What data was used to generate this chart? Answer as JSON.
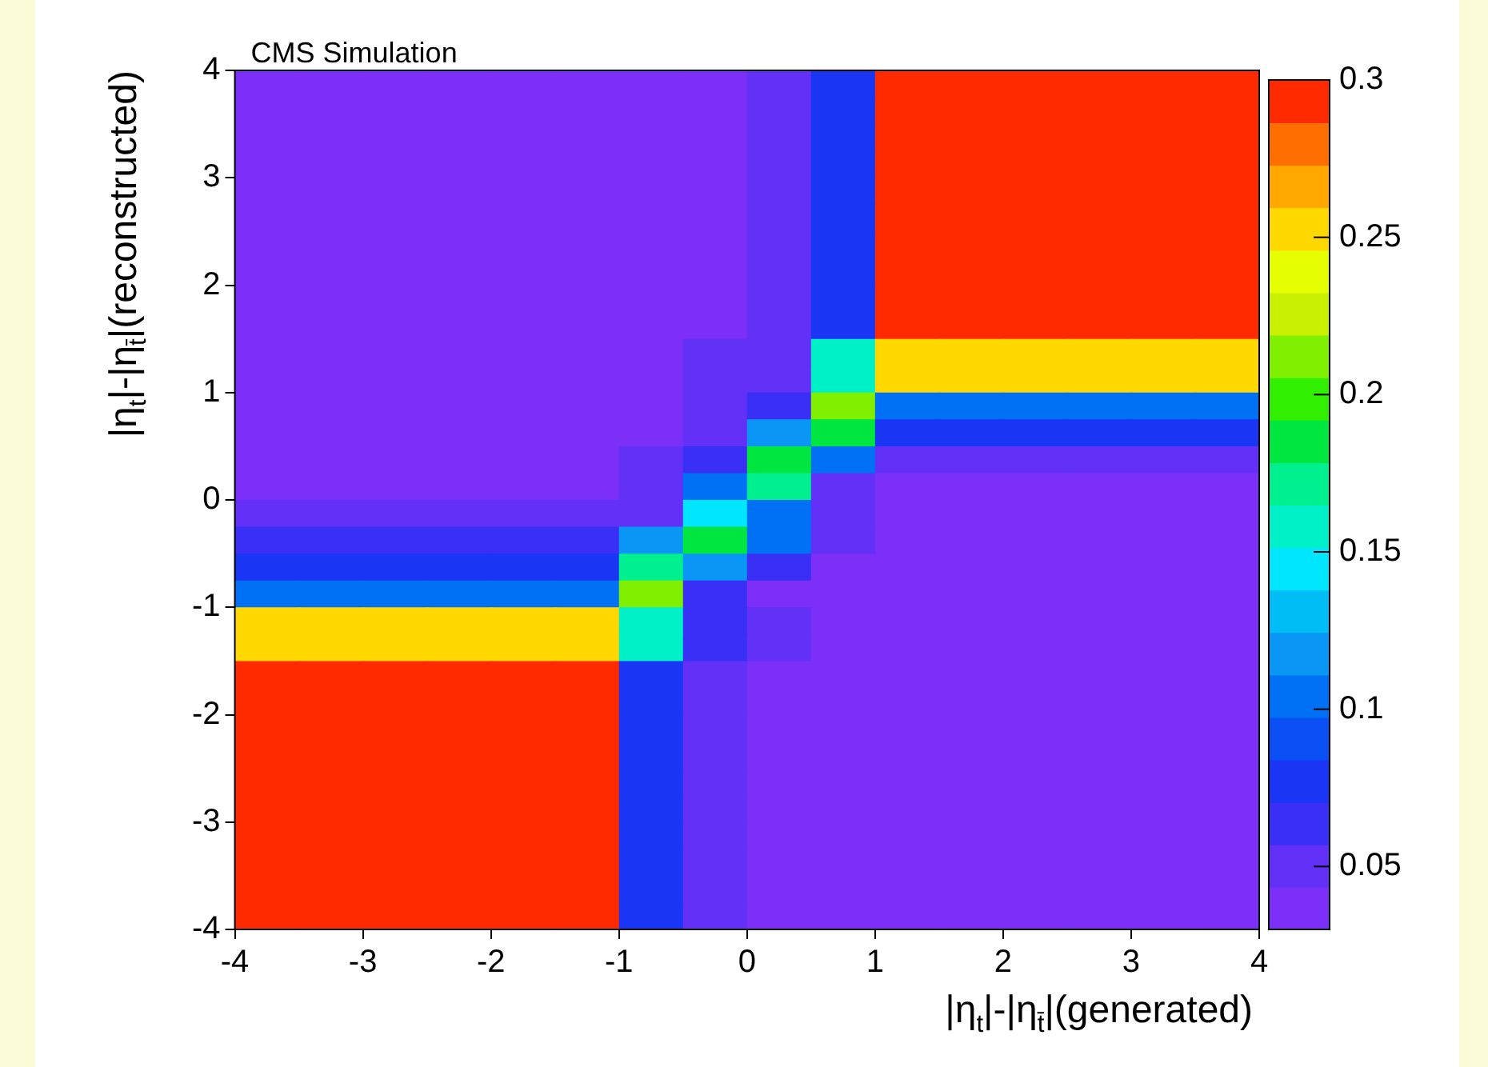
{
  "chart_data": {
    "type": "heatmap",
    "title": "CMS Simulation",
    "xlabel": "|η$_{t}$|-|η$_{t̄}$|(generated)",
    "ylabel": "|η$_{t}$|-|η$_{t̄}$|(reconstructed)",
    "x": [
      -3.75,
      -3.25,
      -2.75,
      -2.25,
      -1.75,
      -1.25,
      -0.75,
      -0.25,
      0.25,
      0.75,
      1.25,
      1.75,
      2.25,
      2.75,
      3.25,
      3.75
    ],
    "y": [
      3.875,
      3.625,
      3.375,
      3.125,
      2.875,
      2.625,
      2.375,
      2.125,
      1.875,
      1.625,
      1.375,
      1.125,
      0.875,
      0.625,
      0.375,
      0.125,
      -0.125,
      -0.375,
      -0.625,
      -0.875,
      -1.125,
      -1.375,
      -1.625,
      -1.875,
      -2.125,
      -2.375,
      -2.625,
      -2.875,
      -3.125,
      -3.375,
      -3.625,
      -3.875
    ],
    "cells": [
      [
        0.03,
        0.03,
        0.03,
        0.03,
        0.03,
        0.03,
        0.03,
        0.03,
        0.045,
        0.075,
        0.3,
        0.3,
        0.3,
        0.3,
        0.3,
        0.3
      ],
      [
        0.03,
        0.03,
        0.03,
        0.03,
        0.03,
        0.03,
        0.03,
        0.03,
        0.045,
        0.075,
        0.3,
        0.3,
        0.3,
        0.3,
        0.3,
        0.3
      ],
      [
        0.03,
        0.03,
        0.03,
        0.03,
        0.03,
        0.03,
        0.03,
        0.03,
        0.045,
        0.075,
        0.3,
        0.3,
        0.3,
        0.3,
        0.3,
        0.3
      ],
      [
        0.03,
        0.03,
        0.03,
        0.03,
        0.03,
        0.03,
        0.03,
        0.03,
        0.045,
        0.075,
        0.3,
        0.3,
        0.3,
        0.3,
        0.3,
        0.3
      ],
      [
        0.03,
        0.03,
        0.03,
        0.03,
        0.03,
        0.03,
        0.03,
        0.03,
        0.045,
        0.075,
        0.3,
        0.3,
        0.3,
        0.3,
        0.3,
        0.3
      ],
      [
        0.03,
        0.03,
        0.03,
        0.03,
        0.03,
        0.03,
        0.03,
        0.03,
        0.045,
        0.075,
        0.3,
        0.3,
        0.3,
        0.3,
        0.3,
        0.3
      ],
      [
        0.03,
        0.03,
        0.03,
        0.03,
        0.03,
        0.03,
        0.03,
        0.03,
        0.045,
        0.075,
        0.3,
        0.3,
        0.3,
        0.3,
        0.3,
        0.3
      ],
      [
        0.03,
        0.03,
        0.03,
        0.03,
        0.03,
        0.03,
        0.03,
        0.03,
        0.045,
        0.075,
        0.3,
        0.3,
        0.3,
        0.3,
        0.3,
        0.3
      ],
      [
        0.03,
        0.03,
        0.03,
        0.03,
        0.03,
        0.03,
        0.03,
        0.03,
        0.045,
        0.075,
        0.3,
        0.3,
        0.3,
        0.3,
        0.3,
        0.3
      ],
      [
        0.03,
        0.03,
        0.03,
        0.03,
        0.03,
        0.03,
        0.03,
        0.03,
        0.045,
        0.075,
        0.3,
        0.3,
        0.3,
        0.3,
        0.3,
        0.3
      ],
      [
        0.03,
        0.03,
        0.03,
        0.03,
        0.03,
        0.03,
        0.03,
        0.045,
        0.055,
        0.16,
        0.25,
        0.25,
        0.25,
        0.25,
        0.25,
        0.25
      ],
      [
        0.03,
        0.03,
        0.03,
        0.03,
        0.03,
        0.03,
        0.03,
        0.045,
        0.055,
        0.16,
        0.25,
        0.25,
        0.25,
        0.25,
        0.25,
        0.25
      ],
      [
        0.03,
        0.03,
        0.03,
        0.03,
        0.03,
        0.03,
        0.03,
        0.045,
        0.07,
        0.21,
        0.11,
        0.11,
        0.11,
        0.11,
        0.11,
        0.11
      ],
      [
        0.03,
        0.03,
        0.03,
        0.03,
        0.03,
        0.03,
        0.03,
        0.045,
        0.12,
        0.18,
        0.08,
        0.08,
        0.08,
        0.08,
        0.08,
        0.08
      ],
      [
        0.03,
        0.03,
        0.03,
        0.03,
        0.03,
        0.03,
        0.045,
        0.07,
        0.19,
        0.1,
        0.055,
        0.055,
        0.055,
        0.055,
        0.055,
        0.055
      ],
      [
        0.03,
        0.03,
        0.03,
        0.03,
        0.03,
        0.03,
        0.045,
        0.1,
        0.17,
        0.05,
        0.04,
        0.04,
        0.04,
        0.04,
        0.04,
        0.04
      ],
      [
        0.045,
        0.045,
        0.045,
        0.045,
        0.045,
        0.045,
        0.045,
        0.15,
        0.1,
        0.045,
        0.03,
        0.03,
        0.03,
        0.03,
        0.03,
        0.03
      ],
      [
        0.06,
        0.06,
        0.06,
        0.06,
        0.06,
        0.06,
        0.12,
        0.19,
        0.1,
        0.045,
        0.03,
        0.03,
        0.03,
        0.03,
        0.03,
        0.03
      ],
      [
        0.08,
        0.08,
        0.08,
        0.08,
        0.08,
        0.08,
        0.17,
        0.12,
        0.06,
        0.03,
        0.03,
        0.03,
        0.03,
        0.03,
        0.03,
        0.03
      ],
      [
        0.11,
        0.11,
        0.11,
        0.11,
        0.11,
        0.11,
        0.21,
        0.06,
        0.04,
        0.03,
        0.03,
        0.03,
        0.03,
        0.03,
        0.03,
        0.03
      ],
      [
        0.25,
        0.25,
        0.25,
        0.25,
        0.25,
        0.25,
        0.16,
        0.06,
        0.045,
        0.03,
        0.03,
        0.03,
        0.03,
        0.03,
        0.03,
        0.03
      ],
      [
        0.25,
        0.25,
        0.25,
        0.25,
        0.25,
        0.25,
        0.16,
        0.06,
        0.045,
        0.03,
        0.03,
        0.03,
        0.03,
        0.03,
        0.03,
        0.03
      ],
      [
        0.3,
        0.3,
        0.3,
        0.3,
        0.3,
        0.3,
        0.075,
        0.045,
        0.03,
        0.03,
        0.03,
        0.03,
        0.03,
        0.03,
        0.03,
        0.03
      ],
      [
        0.3,
        0.3,
        0.3,
        0.3,
        0.3,
        0.3,
        0.075,
        0.045,
        0.03,
        0.03,
        0.03,
        0.03,
        0.03,
        0.03,
        0.03,
        0.03
      ],
      [
        0.3,
        0.3,
        0.3,
        0.3,
        0.3,
        0.3,
        0.075,
        0.045,
        0.03,
        0.03,
        0.03,
        0.03,
        0.03,
        0.03,
        0.03,
        0.03
      ],
      [
        0.3,
        0.3,
        0.3,
        0.3,
        0.3,
        0.3,
        0.075,
        0.045,
        0.03,
        0.03,
        0.03,
        0.03,
        0.03,
        0.03,
        0.03,
        0.03
      ],
      [
        0.3,
        0.3,
        0.3,
        0.3,
        0.3,
        0.3,
        0.075,
        0.045,
        0.03,
        0.03,
        0.03,
        0.03,
        0.03,
        0.03,
        0.03,
        0.03
      ],
      [
        0.3,
        0.3,
        0.3,
        0.3,
        0.3,
        0.3,
        0.075,
        0.045,
        0.03,
        0.03,
        0.03,
        0.03,
        0.03,
        0.03,
        0.03,
        0.03
      ],
      [
        0.3,
        0.3,
        0.3,
        0.3,
        0.3,
        0.3,
        0.075,
        0.045,
        0.03,
        0.03,
        0.03,
        0.03,
        0.03,
        0.03,
        0.03,
        0.03
      ],
      [
        0.3,
        0.3,
        0.3,
        0.3,
        0.3,
        0.3,
        0.075,
        0.045,
        0.03,
        0.03,
        0.03,
        0.03,
        0.03,
        0.03,
        0.03,
        0.03
      ],
      [
        0.3,
        0.3,
        0.3,
        0.3,
        0.3,
        0.3,
        0.075,
        0.045,
        0.03,
        0.03,
        0.03,
        0.03,
        0.03,
        0.03,
        0.03,
        0.03
      ],
      [
        0.3,
        0.3,
        0.3,
        0.3,
        0.3,
        0.3,
        0.075,
        0.045,
        0.03,
        0.03,
        0.03,
        0.03,
        0.03,
        0.03,
        0.03,
        0.03
      ]
    ],
    "xlim": [
      -4,
      4
    ],
    "ylim": [
      -4,
      4
    ],
    "xticks": [
      -4,
      -3,
      -2,
      -1,
      0,
      1,
      2,
      3,
      4
    ],
    "yticks": [
      -4,
      -3,
      -2,
      -1,
      0,
      1,
      2,
      3,
      4
    ],
    "clim": [
      0.03,
      0.3
    ],
    "cticks": [
      0.05,
      0.1,
      0.15,
      0.2,
      0.25,
      0.3
    ]
  }
}
